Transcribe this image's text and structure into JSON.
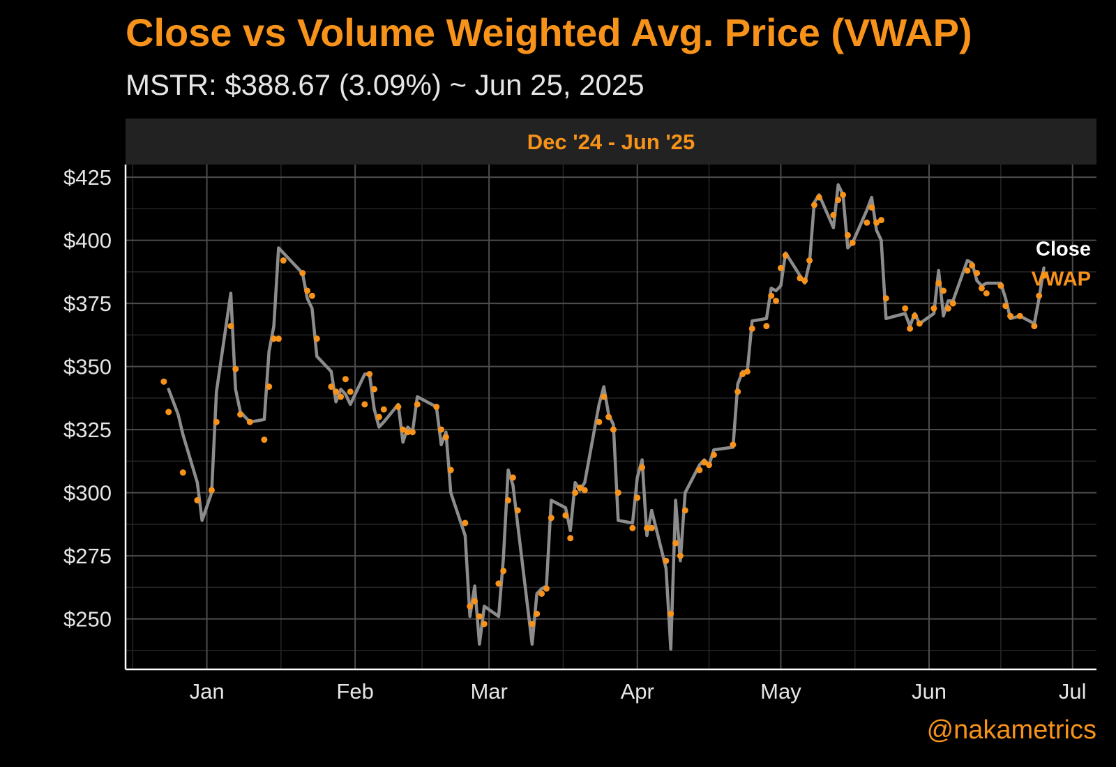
{
  "title": "Close vs Volume Weighted Avg. Price (VWAP)",
  "subtitle": "MSTR: $388.67 (3.09%) ~ Jun 25, 2025",
  "strip_label": "Dec '24 - Jun '25",
  "credit": "@nakametrics",
  "colors": {
    "background": "#000000",
    "accent": "#f7931a",
    "close_line": "#8c8c8c",
    "grid_major": "#4d4d4d",
    "grid_minor": "#262626",
    "text": "#e6e6e6"
  },
  "chart_data": {
    "type": "line",
    "title": "Close vs Volume Weighted Avg. Price (VWAP)",
    "subtitle": "MSTR: $388.67 (3.09%) ~ Jun 25, 2025",
    "xlabel": "",
    "ylabel": "",
    "xlim": [
      "2024-12-15",
      "2025-07-06"
    ],
    "ylim": [
      230,
      430
    ],
    "x_ticks": [
      {
        "date": "2025-01-01",
        "label": "Jan"
      },
      {
        "date": "2025-02-01",
        "label": "Feb"
      },
      {
        "date": "2025-03-01",
        "label": "Mar"
      },
      {
        "date": "2025-04-01",
        "label": "Apr"
      },
      {
        "date": "2025-05-01",
        "label": "May"
      },
      {
        "date": "2025-06-01",
        "label": "Jun"
      },
      {
        "date": "2025-07-01",
        "label": "Jul"
      }
    ],
    "y_ticks": [
      250,
      275,
      300,
      325,
      350,
      375,
      400,
      425
    ],
    "y_tick_labels": [
      "$250",
      "$275",
      "$300",
      "$325",
      "$350",
      "$375",
      "$400",
      "$425"
    ],
    "grid": true,
    "legend": "direct labels at right end of series",
    "series": [
      {
        "name": "Close",
        "style": "line",
        "color": "#8c8c8c",
        "points": [
          [
            "2024-12-24",
            341
          ],
          [
            "2024-12-26",
            331
          ],
          [
            "2024-12-27",
            323
          ],
          [
            "2024-12-30",
            304
          ],
          [
            "2024-12-31",
            289
          ],
          [
            "2025-01-02",
            300
          ],
          [
            "2025-01-03",
            340
          ],
          [
            "2025-01-06",
            379
          ],
          [
            "2025-01-07",
            341
          ],
          [
            "2025-01-08",
            332
          ],
          [
            "2025-01-10",
            328
          ],
          [
            "2025-01-13",
            329
          ],
          [
            "2025-01-14",
            356
          ],
          [
            "2025-01-15",
            366
          ],
          [
            "2025-01-16",
            397
          ],
          [
            "2025-01-21",
            387
          ],
          [
            "2025-01-22",
            377
          ],
          [
            "2025-01-23",
            373
          ],
          [
            "2025-01-24",
            354
          ],
          [
            "2025-01-27",
            348
          ],
          [
            "2025-01-28",
            336
          ],
          [
            "2025-01-29",
            341
          ],
          [
            "2025-01-30",
            339
          ],
          [
            "2025-01-31",
            335
          ],
          [
            "2025-02-03",
            347
          ],
          [
            "2025-02-04",
            347
          ],
          [
            "2025-02-05",
            333
          ],
          [
            "2025-02-06",
            326
          ],
          [
            "2025-02-07",
            328
          ],
          [
            "2025-02-10",
            335
          ],
          [
            "2025-02-11",
            320
          ],
          [
            "2025-02-12",
            326
          ],
          [
            "2025-02-13",
            324
          ],
          [
            "2025-02-14",
            338
          ],
          [
            "2025-02-18",
            334
          ],
          [
            "2025-02-19",
            319
          ],
          [
            "2025-02-20",
            324
          ],
          [
            "2025-02-21",
            300
          ],
          [
            "2025-02-24",
            283
          ],
          [
            "2025-02-25",
            251
          ],
          [
            "2025-02-26",
            263
          ],
          [
            "2025-02-27",
            240
          ],
          [
            "2025-02-28",
            255
          ],
          [
            "2025-03-03",
            251
          ],
          [
            "2025-03-04",
            274
          ],
          [
            "2025-03-05",
            309
          ],
          [
            "2025-03-06",
            303
          ],
          [
            "2025-03-10",
            240
          ],
          [
            "2025-03-11",
            260
          ],
          [
            "2025-03-12",
            262
          ],
          [
            "2025-03-13",
            263
          ],
          [
            "2025-03-14",
            297
          ],
          [
            "2025-03-17",
            294
          ],
          [
            "2025-03-18",
            285
          ],
          [
            "2025-03-19",
            304
          ],
          [
            "2025-03-20",
            301
          ],
          [
            "2025-03-21",
            304
          ],
          [
            "2025-03-24",
            335
          ],
          [
            "2025-03-25",
            342
          ],
          [
            "2025-03-26",
            331
          ],
          [
            "2025-03-27",
            327
          ],
          [
            "2025-03-28",
            289
          ],
          [
            "2025-03-31",
            288
          ],
          [
            "2025-04-01",
            306
          ],
          [
            "2025-04-02",
            313
          ],
          [
            "2025-04-03",
            283
          ],
          [
            "2025-04-04",
            293
          ],
          [
            "2025-04-07",
            270
          ],
          [
            "2025-04-08",
            238
          ],
          [
            "2025-04-09",
            297
          ],
          [
            "2025-04-10",
            273
          ],
          [
            "2025-04-11",
            300
          ],
          [
            "2025-04-14",
            311
          ],
          [
            "2025-04-15",
            313
          ],
          [
            "2025-04-16",
            311
          ],
          [
            "2025-04-17",
            317
          ],
          [
            "2025-04-21",
            318
          ],
          [
            "2025-04-22",
            343
          ],
          [
            "2025-04-23",
            348
          ],
          [
            "2025-04-24",
            348
          ],
          [
            "2025-04-25",
            368
          ],
          [
            "2025-04-28",
            369
          ],
          [
            "2025-04-29",
            381
          ],
          [
            "2025-04-30",
            380
          ],
          [
            "2025-05-01",
            382
          ],
          [
            "2025-05-02",
            395
          ],
          [
            "2025-05-05",
            386
          ],
          [
            "2025-05-06",
            383
          ],
          [
            "2025-05-07",
            391
          ],
          [
            "2025-05-08",
            415
          ],
          [
            "2025-05-09",
            418
          ],
          [
            "2025-05-12",
            405
          ],
          [
            "2025-05-13",
            422
          ],
          [
            "2025-05-14",
            418
          ],
          [
            "2025-05-15",
            397
          ],
          [
            "2025-05-16",
            399
          ],
          [
            "2025-05-19",
            412
          ],
          [
            "2025-05-20",
            417
          ],
          [
            "2025-05-21",
            404
          ],
          [
            "2025-05-22",
            400
          ],
          [
            "2025-05-23",
            369
          ],
          [
            "2025-05-27",
            371
          ],
          [
            "2025-05-28",
            366
          ],
          [
            "2025-05-29",
            371
          ],
          [
            "2025-05-30",
            367
          ],
          [
            "2025-06-02",
            371
          ],
          [
            "2025-06-03",
            388
          ],
          [
            "2025-06-04",
            370
          ],
          [
            "2025-06-05",
            376
          ],
          [
            "2025-06-06",
            376
          ],
          [
            "2025-06-09",
            392
          ],
          [
            "2025-06-10",
            391
          ],
          [
            "2025-06-11",
            384
          ],
          [
            "2025-06-12",
            382
          ],
          [
            "2025-06-13",
            383
          ],
          [
            "2025-06-16",
            383
          ],
          [
            "2025-06-17",
            377
          ],
          [
            "2025-06-18",
            369
          ],
          [
            "2025-06-20",
            370
          ],
          [
            "2025-06-23",
            367
          ],
          [
            "2025-06-24",
            377
          ],
          [
            "2025-06-25",
            389
          ]
        ]
      },
      {
        "name": "VWAP",
        "style": "points",
        "color": "#f7931a",
        "points": [
          [
            "2024-12-23",
            344
          ],
          [
            "2024-12-24",
            332
          ],
          [
            "2024-12-27",
            308
          ],
          [
            "2024-12-30",
            297
          ],
          [
            "2025-01-02",
            301
          ],
          [
            "2025-01-03",
            328
          ],
          [
            "2025-01-06",
            366
          ],
          [
            "2025-01-07",
            349
          ],
          [
            "2025-01-08",
            331
          ],
          [
            "2025-01-10",
            328
          ],
          [
            "2025-01-13",
            321
          ],
          [
            "2025-01-14",
            342
          ],
          [
            "2025-01-15",
            361
          ],
          [
            "2025-01-16",
            361
          ],
          [
            "2025-01-17",
            392
          ],
          [
            "2025-01-21",
            387
          ],
          [
            "2025-01-22",
            380
          ],
          [
            "2025-01-23",
            378
          ],
          [
            "2025-01-24",
            361
          ],
          [
            "2025-01-27",
            342
          ],
          [
            "2025-01-28",
            340
          ],
          [
            "2025-01-29",
            338
          ],
          [
            "2025-01-30",
            345
          ],
          [
            "2025-01-31",
            340
          ],
          [
            "2025-02-03",
            335
          ],
          [
            "2025-02-04",
            347
          ],
          [
            "2025-02-05",
            341
          ],
          [
            "2025-02-06",
            330
          ],
          [
            "2025-02-07",
            333
          ],
          [
            "2025-02-10",
            334
          ],
          [
            "2025-02-11",
            325
          ],
          [
            "2025-02-12",
            324
          ],
          [
            "2025-02-13",
            324
          ],
          [
            "2025-02-14",
            335
          ],
          [
            "2025-02-18",
            334
          ],
          [
            "2025-02-19",
            325
          ],
          [
            "2025-02-20",
            322
          ],
          [
            "2025-02-21",
            309
          ],
          [
            "2025-02-24",
            288
          ],
          [
            "2025-02-25",
            255
          ],
          [
            "2025-02-26",
            257
          ],
          [
            "2025-02-27",
            251
          ],
          [
            "2025-02-28",
            248
          ],
          [
            "2025-03-03",
            264
          ],
          [
            "2025-03-04",
            269
          ],
          [
            "2025-03-05",
            297
          ],
          [
            "2025-03-06",
            306
          ],
          [
            "2025-03-07",
            293
          ],
          [
            "2025-03-10",
            248
          ],
          [
            "2025-03-11",
            252
          ],
          [
            "2025-03-12",
            260
          ],
          [
            "2025-03-13",
            262
          ],
          [
            "2025-03-14",
            290
          ],
          [
            "2025-03-17",
            291
          ],
          [
            "2025-03-18",
            282
          ],
          [
            "2025-03-19",
            300
          ],
          [
            "2025-03-20",
            302
          ],
          [
            "2025-03-21",
            301
          ],
          [
            "2025-03-24",
            328
          ],
          [
            "2025-03-25",
            338
          ],
          [
            "2025-03-26",
            330
          ],
          [
            "2025-03-27",
            325
          ],
          [
            "2025-03-28",
            300
          ],
          [
            "2025-03-31",
            286
          ],
          [
            "2025-04-01",
            298
          ],
          [
            "2025-04-02",
            310
          ],
          [
            "2025-04-03",
            286
          ],
          [
            "2025-04-04",
            286
          ],
          [
            "2025-04-07",
            273
          ],
          [
            "2025-04-08",
            252
          ],
          [
            "2025-04-09",
            280
          ],
          [
            "2025-04-10",
            275
          ],
          [
            "2025-04-11",
            293
          ],
          [
            "2025-04-14",
            309
          ],
          [
            "2025-04-15",
            312
          ],
          [
            "2025-04-16",
            311
          ],
          [
            "2025-04-17",
            315
          ],
          [
            "2025-04-21",
            319
          ],
          [
            "2025-04-22",
            340
          ],
          [
            "2025-04-23",
            347
          ],
          [
            "2025-04-24",
            348
          ],
          [
            "2025-04-25",
            365
          ],
          [
            "2025-04-28",
            366
          ],
          [
            "2025-04-29",
            378
          ],
          [
            "2025-04-30",
            376
          ],
          [
            "2025-05-01",
            389
          ],
          [
            "2025-05-02",
            394
          ],
          [
            "2025-05-05",
            385
          ],
          [
            "2025-05-06",
            384
          ],
          [
            "2025-05-07",
            392
          ],
          [
            "2025-05-08",
            414
          ],
          [
            "2025-05-09",
            417
          ],
          [
            "2025-05-12",
            410
          ],
          [
            "2025-05-13",
            416
          ],
          [
            "2025-05-14",
            418
          ],
          [
            "2025-05-15",
            402
          ],
          [
            "2025-05-16",
            399
          ],
          [
            "2025-05-19",
            407
          ],
          [
            "2025-05-20",
            413
          ],
          [
            "2025-05-21",
            407
          ],
          [
            "2025-05-22",
            408
          ],
          [
            "2025-05-23",
            377
          ],
          [
            "2025-05-27",
            373
          ],
          [
            "2025-05-28",
            365
          ],
          [
            "2025-05-29",
            370
          ],
          [
            "2025-05-30",
            367
          ],
          [
            "2025-06-02",
            373
          ],
          [
            "2025-06-03",
            383
          ],
          [
            "2025-06-04",
            380
          ],
          [
            "2025-06-05",
            373
          ],
          [
            "2025-06-06",
            375
          ],
          [
            "2025-06-09",
            388
          ],
          [
            "2025-06-10",
            390
          ],
          [
            "2025-06-11",
            387
          ],
          [
            "2025-06-12",
            381
          ],
          [
            "2025-06-13",
            379
          ],
          [
            "2025-06-16",
            382
          ],
          [
            "2025-06-17",
            374
          ],
          [
            "2025-06-18",
            370
          ],
          [
            "2025-06-20",
            370
          ],
          [
            "2025-06-23",
            366
          ],
          [
            "2025-06-24",
            378
          ],
          [
            "2025-06-25",
            386
          ]
        ]
      }
    ]
  }
}
